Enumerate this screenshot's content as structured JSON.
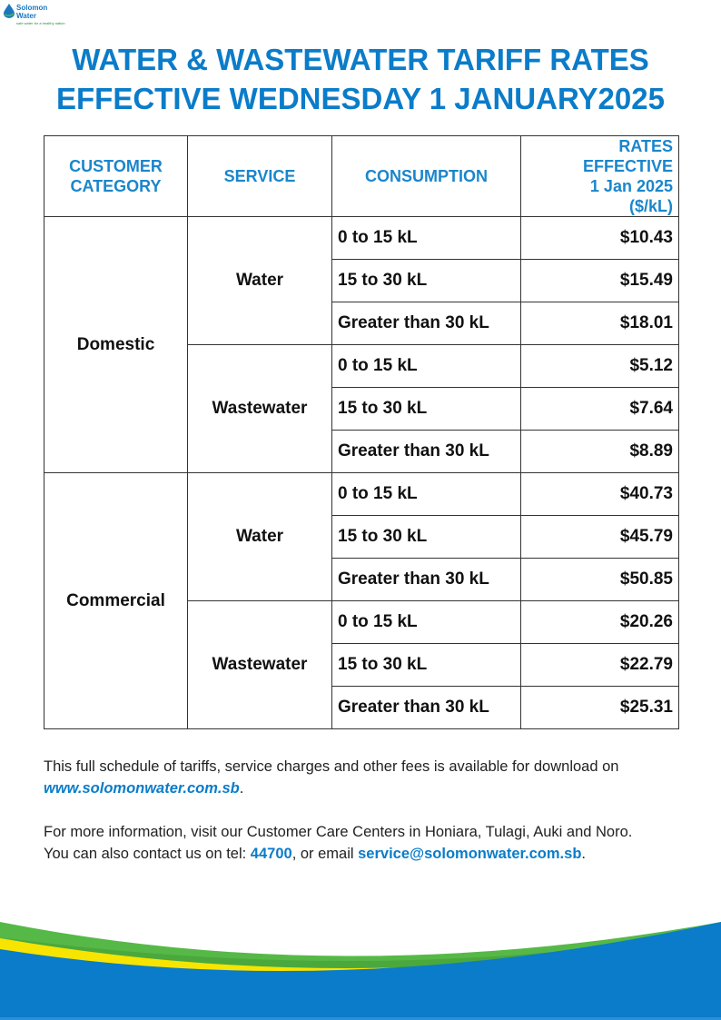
{
  "logo": {
    "name": "Solomon Water",
    "tagline": "safe water for a healthy nation"
  },
  "title": {
    "line1": "WATER & WASTEWATER TARIFF RATES",
    "line2": "EFFECTIVE WEDNESDAY 1 JANUARY2025"
  },
  "table": {
    "headers": {
      "category": "CUSTOMER CATEGORY",
      "service": "SERVICE",
      "consumption": "CONSUMPTION",
      "rates_l1": "RATES EFFECTIVE",
      "rates_l2": "1 Jan 2025",
      "rates_l3": "($/kL)"
    },
    "categories": [
      {
        "name": "Domestic",
        "services": [
          {
            "name": "Water",
            "rows": [
              {
                "c": "0 to 15 kL",
                "r": "$10.43"
              },
              {
                "c": "15 to 30 kL",
                "r": "$15.49"
              },
              {
                "c": "Greater than 30 kL",
                "r": "$18.01"
              }
            ]
          },
          {
            "name": "Wastewater",
            "rows": [
              {
                "c": "0 to 15 kL",
                "r": "$5.12"
              },
              {
                "c": "15 to 30 kL",
                "r": "$7.64"
              },
              {
                "c": "Greater than 30 kL",
                "r": "$8.89"
              }
            ]
          }
        ]
      },
      {
        "name": "Commercial",
        "services": [
          {
            "name": "Water",
            "rows": [
              {
                "c": "0 to 15 kL",
                "r": "$40.73"
              },
              {
                "c": "15 to 30 kL",
                "r": "$45.79"
              },
              {
                "c": "Greater than 30 kL",
                "r": "$50.85"
              }
            ]
          },
          {
            "name": "Wastewater",
            "rows": [
              {
                "c": "0 to 15 kL",
                "r": "$20.26"
              },
              {
                "c": "15 to 30 kL",
                "r": "$22.79"
              },
              {
                "c": "Greater than 30 kL",
                "r": "$25.31"
              }
            ]
          }
        ]
      }
    ]
  },
  "footer": {
    "p1_text": "This full schedule of tariffs, service charges and other fees is available for download on",
    "p1_link": "www.solomonwater.com.sb",
    "p1_end": ".",
    "p2_line1": "For more information, visit our Customer Care Centers in Honiara, Tulagi, Auki and Noro.",
    "p2_pre": "You can also contact us on tel: ",
    "phone": "44700",
    "p2_mid": ", or email ",
    "email": "service@solomonwater.com.sb",
    "p2_end": "."
  },
  "colors": {
    "brand_blue": "#0a7cc9",
    "green": "#56b947",
    "yellow": "#f7e400"
  }
}
